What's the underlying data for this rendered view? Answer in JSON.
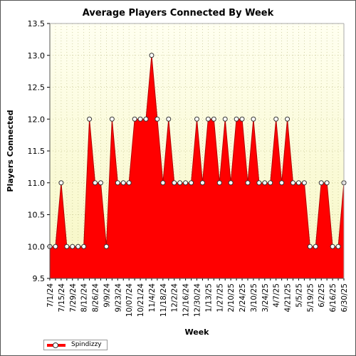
{
  "chart_data": {
    "type": "area",
    "title": "Average Players Connected By Week",
    "xlabel": "Week",
    "ylabel": "Players Connected",
    "ylim": [
      9.5,
      13.5
    ],
    "yticks": [
      9.5,
      10.0,
      10.5,
      11.0,
      11.5,
      12.0,
      12.5,
      13.0,
      13.5
    ],
    "grid": true,
    "legend_position": "bottom-left",
    "colors": {
      "series": "#ff0000",
      "plot_background_top": "#fffff0",
      "plot_background_bottom": "#f7f7c4",
      "grid": "#c8c896"
    },
    "x": [
      "7/1/24",
      "7/8/24",
      "7/15/24",
      "7/22/24",
      "7/29/24",
      "8/5/24",
      "8/12/24",
      "8/19/24",
      "8/26/24",
      "9/2/24",
      "9/9/24",
      "9/16/24",
      "9/23/24",
      "9/30/24",
      "10/7/24",
      "10/14/24",
      "10/21/24",
      "10/28/24",
      "11/4/24",
      "11/11/24",
      "11/18/24",
      "11/25/24",
      "12/2/24",
      "12/9/24",
      "12/16/24",
      "12/23/24",
      "12/30/24",
      "1/6/25",
      "1/13/25",
      "1/20/25",
      "1/27/25",
      "2/3/25",
      "2/10/25",
      "2/17/25",
      "2/24/25",
      "3/3/25",
      "3/10/25",
      "3/17/25",
      "3/24/25",
      "3/31/25",
      "4/7/25",
      "4/14/25",
      "4/21/25",
      "4/28/25",
      "5/5/25",
      "5/12/25",
      "5/19/25",
      "5/26/25",
      "6/2/25",
      "6/9/25",
      "6/16/25",
      "6/23/25",
      "6/30/25"
    ],
    "xtick_labels": [
      "7/1/24",
      "7/15/24",
      "7/29/24",
      "8/12/24",
      "8/26/24",
      "9/9/24",
      "9/23/24",
      "10/07/24",
      "10/21/24",
      "11/4/24",
      "11/18/24",
      "12/2/24",
      "12/16/24",
      "12/30/24",
      "1/13/25",
      "1/27/25",
      "2/10/25",
      "2/24/25",
      "3/10/25",
      "3/24/25",
      "4/7/25",
      "4/21/25",
      "5/5/25",
      "5/19/25",
      "6/2/25",
      "6/16/25",
      "6/30/25"
    ],
    "series": [
      {
        "name": "Spindizzy",
        "values": [
          10.0,
          10.0,
          11.0,
          10.0,
          10.0,
          10.0,
          10.0,
          12.0,
          11.0,
          11.0,
          10.0,
          12.0,
          11.0,
          11.0,
          11.0,
          12.0,
          12.0,
          12.0,
          13.0,
          12.0,
          11.0,
          12.0,
          11.0,
          11.0,
          11.0,
          11.0,
          12.0,
          11.0,
          12.0,
          12.0,
          11.0,
          12.0,
          11.0,
          12.0,
          12.0,
          11.0,
          12.0,
          11.0,
          11.0,
          11.0,
          12.0,
          11.0,
          12.0,
          11.0,
          11.0,
          11.0,
          10.0,
          10.0,
          11.0,
          11.0,
          10.0,
          10.0,
          11.0
        ]
      }
    ]
  }
}
